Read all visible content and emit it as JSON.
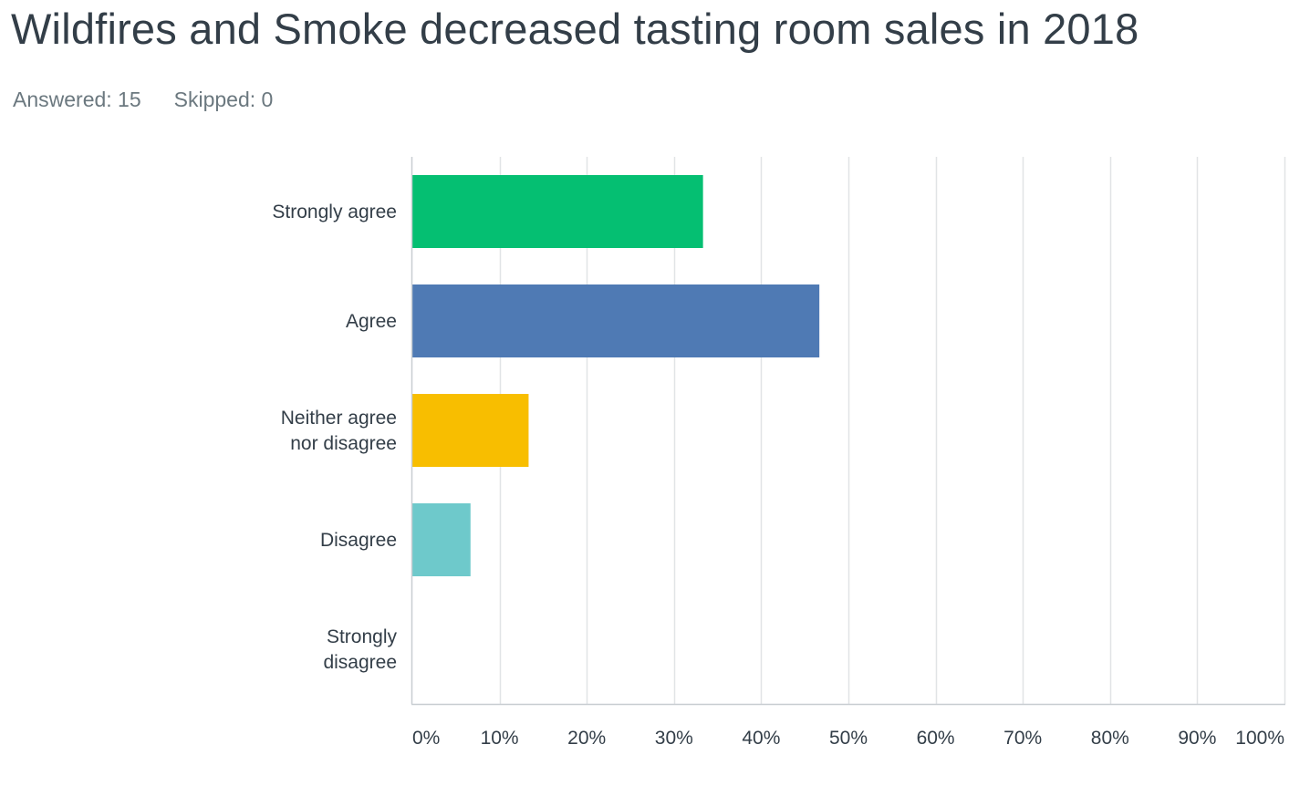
{
  "chart_data": {
    "type": "bar",
    "orientation": "horizontal",
    "title": "Wildfires and Smoke decreased tasting room sales in 2018",
    "answered_label": "Answered: 15",
    "skipped_label": "Skipped: 0",
    "categories": [
      [
        "Strongly agree"
      ],
      [
        "Agree"
      ],
      [
        "Neither agree",
        "nor disagree"
      ],
      [
        "Disagree"
      ],
      [
        "Strongly",
        "disagree"
      ]
    ],
    "values": [
      33.33,
      46.67,
      13.33,
      6.67,
      0
    ],
    "colors": [
      "#05bf72",
      "#4f7ab4",
      "#f8be00",
      "#6ec9cb",
      "#9aa7b0"
    ],
    "xlim": [
      0,
      100
    ],
    "ticks": [
      0,
      10,
      20,
      30,
      40,
      50,
      60,
      70,
      80,
      90,
      100
    ],
    "tick_labels": [
      "0%",
      "10%",
      "20%",
      "30%",
      "40%",
      "50%",
      "60%",
      "70%",
      "80%",
      "90%",
      "100%"
    ],
    "grid": true,
    "gridline_color": "#e1e4e6",
    "axis_color": "#c8cdd1"
  }
}
